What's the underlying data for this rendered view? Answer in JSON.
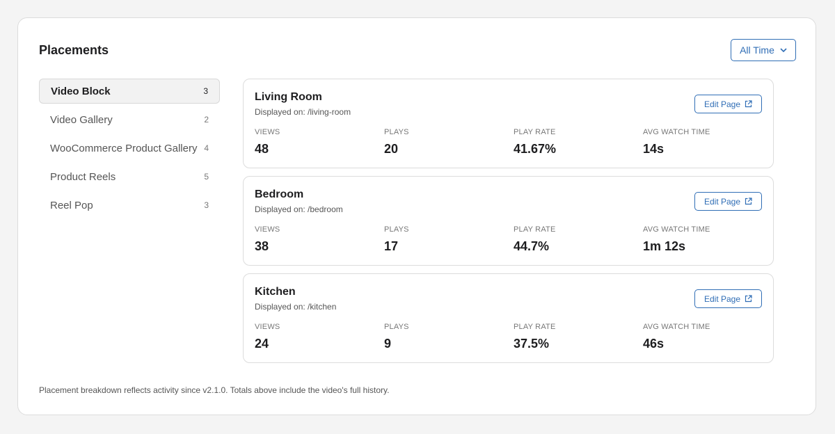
{
  "header": {
    "title": "Placements",
    "filter": "All Time"
  },
  "sidebar": {
    "items": [
      {
        "name": "Video Block",
        "count": 3
      },
      {
        "name": "Video Gallery",
        "count": 2
      },
      {
        "name": "WooCommerce Product Gallery",
        "count": 4
      },
      {
        "name": "Product Reels",
        "count": 5
      },
      {
        "name": "Reel Pop",
        "count": 3
      }
    ]
  },
  "metric_labels": [
    "VIEWS",
    "PLAYS",
    "PLAY RATE",
    "AVG WATCH TIME"
  ],
  "edit_button": "Edit Page",
  "placements": [
    {
      "name": "Living Room",
      "displayed_on": "Displayed on: /living-room",
      "metrics": [
        48,
        20,
        "41.67%",
        "14s"
      ]
    },
    {
      "name": "Bedroom",
      "displayed_on": "Displayed on: /bedroom",
      "metrics": [
        38,
        17,
        "44.7%",
        "1m 12s"
      ]
    },
    {
      "name": "Kitchen",
      "displayed_on": "Displayed on: /kitchen",
      "metrics": [
        24,
        9,
        "37.5%",
        "46s"
      ]
    }
  ],
  "footer": "Placement breakdown reflects activity since v2.1.0. Totals above include the video's full history."
}
